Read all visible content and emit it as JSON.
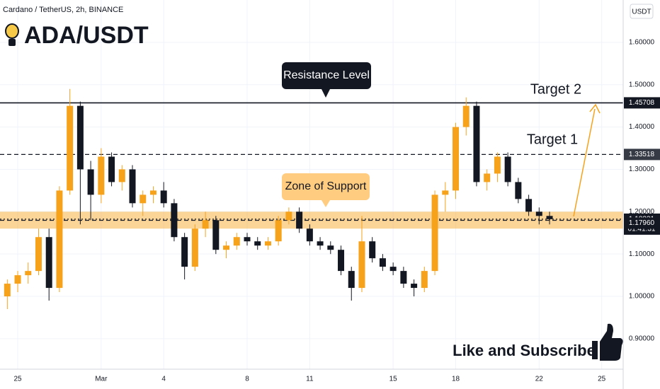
{
  "chart_data": {
    "type": "candlestick",
    "title": "ADA/USDT",
    "subtitle": "Cardano / TetherUS, 2h, BINANCE",
    "currency": "USDT",
    "x": [
      -0.5,
      0,
      0.5,
      1,
      1.5,
      2,
      2.5,
      3,
      3.5,
      4,
      4.5,
      5,
      5.5,
      6,
      6.5,
      7,
      7.5,
      8,
      8.5,
      9,
      9.5,
      10,
      10.5,
      11,
      11.5,
      12,
      12.5,
      13,
      13.5,
      14,
      14.5,
      15,
      15.5,
      16,
      16.5,
      17,
      17.5,
      18,
      18.5,
      19,
      19.5,
      20,
      20.5,
      21,
      21.5,
      22,
      22.5,
      23,
      23.5,
      24,
      24.5,
      25,
      25.5
    ],
    "open": [
      1.0,
      1.03,
      1.05,
      1.06,
      1.14,
      1.02,
      1.25,
      1.45,
      1.3,
      1.24,
      1.33,
      1.27,
      1.3,
      1.22,
      1.24,
      1.25,
      1.22,
      1.14,
      1.07,
      1.16,
      1.18,
      1.11,
      1.12,
      1.14,
      1.13,
      1.12,
      1.13,
      1.18,
      1.2,
      1.16,
      1.13,
      1.12,
      1.11,
      1.06,
      1.02,
      1.13,
      1.09,
      1.07,
      1.06,
      1.03,
      1.02,
      1.06,
      1.24,
      1.25,
      1.4,
      1.45,
      1.27,
      1.29,
      1.33,
      1.27,
      1.23,
      1.2,
      1.19
    ],
    "high": [
      1.04,
      1.06,
      1.08,
      1.16,
      1.16,
      1.26,
      1.49,
      1.46,
      1.32,
      1.35,
      1.34,
      1.31,
      1.31,
      1.25,
      1.26,
      1.27,
      1.23,
      1.15,
      1.17,
      1.2,
      1.19,
      1.13,
      1.15,
      1.15,
      1.14,
      1.14,
      1.19,
      1.21,
      1.21,
      1.17,
      1.14,
      1.13,
      1.12,
      1.07,
      1.19,
      1.14,
      1.1,
      1.08,
      1.07,
      1.04,
      1.07,
      1.25,
      1.27,
      1.41,
      1.47,
      1.46,
      1.3,
      1.34,
      1.34,
      1.28,
      1.24,
      1.21,
      1.2
    ],
    "low": [
      0.97,
      1.01,
      1.03,
      1.05,
      0.99,
      1.01,
      1.24,
      1.17,
      1.18,
      1.22,
      1.26,
      1.25,
      1.21,
      1.19,
      1.22,
      1.21,
      1.13,
      1.04,
      1.06,
      1.14,
      1.1,
      1.09,
      1.11,
      1.12,
      1.11,
      1.11,
      1.12,
      1.17,
      1.15,
      1.12,
      1.11,
      1.1,
      1.05,
      0.99,
      1.01,
      1.08,
      1.06,
      1.05,
      1.02,
      1.0,
      1.01,
      1.05,
      1.2,
      1.23,
      1.38,
      1.26,
      1.25,
      1.27,
      1.26,
      1.22,
      1.19,
      1.17,
      1.17
    ],
    "close": [
      1.03,
      1.05,
      1.06,
      1.14,
      1.02,
      1.25,
      1.45,
      1.3,
      1.24,
      1.33,
      1.27,
      1.3,
      1.22,
      1.24,
      1.25,
      1.22,
      1.14,
      1.07,
      1.16,
      1.18,
      1.11,
      1.12,
      1.14,
      1.13,
      1.12,
      1.13,
      1.18,
      1.2,
      1.16,
      1.13,
      1.12,
      1.11,
      1.06,
      1.02,
      1.13,
      1.09,
      1.07,
      1.06,
      1.03,
      1.02,
      1.06,
      1.24,
      1.25,
      1.4,
      1.45,
      1.27,
      1.29,
      1.33,
      1.27,
      1.23,
      1.2,
      1.19,
      1.18231
    ],
    "up_color": "#f7a21b",
    "down_color": "#131722",
    "xlim": [
      -0.85,
      29.03
    ],
    "xticks": [
      {
        "value": 0,
        "label": "25"
      },
      {
        "value": 4,
        "label": "Mar"
      },
      {
        "value": 7,
        "label": "4"
      },
      {
        "value": 11,
        "label": "8"
      },
      {
        "value": 14,
        "label": "11"
      },
      {
        "value": 18,
        "label": "15"
      },
      {
        "value": 21,
        "label": "18"
      },
      {
        "value": 25,
        "label": "22"
      },
      {
        "value": 28,
        "label": "25"
      }
    ],
    "ylim": [
      0.828,
      1.7
    ],
    "yticks": [
      {
        "value": 0.9,
        "label": "0.90000"
      },
      {
        "value": 1.0,
        "label": "1.00000"
      },
      {
        "value": 1.1,
        "label": "1.10000"
      },
      {
        "value": 1.2,
        "label": "1.20000"
      },
      {
        "value": 1.3,
        "label": "1.30000"
      },
      {
        "value": 1.4,
        "label": "1.40000"
      },
      {
        "value": 1.5,
        "label": "1.50000"
      },
      {
        "value": 1.6,
        "label": "1.60000"
      }
    ],
    "grid": true,
    "price_lines": [
      {
        "value": 1.45708,
        "style": "solid"
      },
      {
        "value": 1.33518,
        "style": "dashed"
      },
      {
        "value": 1.18231,
        "style": "dotted",
        "timer": "01:41:31"
      },
      {
        "value": 1.1796,
        "label": "1.17960",
        "style": "dashed"
      }
    ],
    "support_zone": {
      "text": "Zone of Support",
      "range": [
        1.16,
        1.2
      ]
    },
    "resistance_text": "Resistance Level",
    "targets": [
      "Target 2",
      "Target 1"
    ],
    "footer": "Like and Subscribe"
  }
}
